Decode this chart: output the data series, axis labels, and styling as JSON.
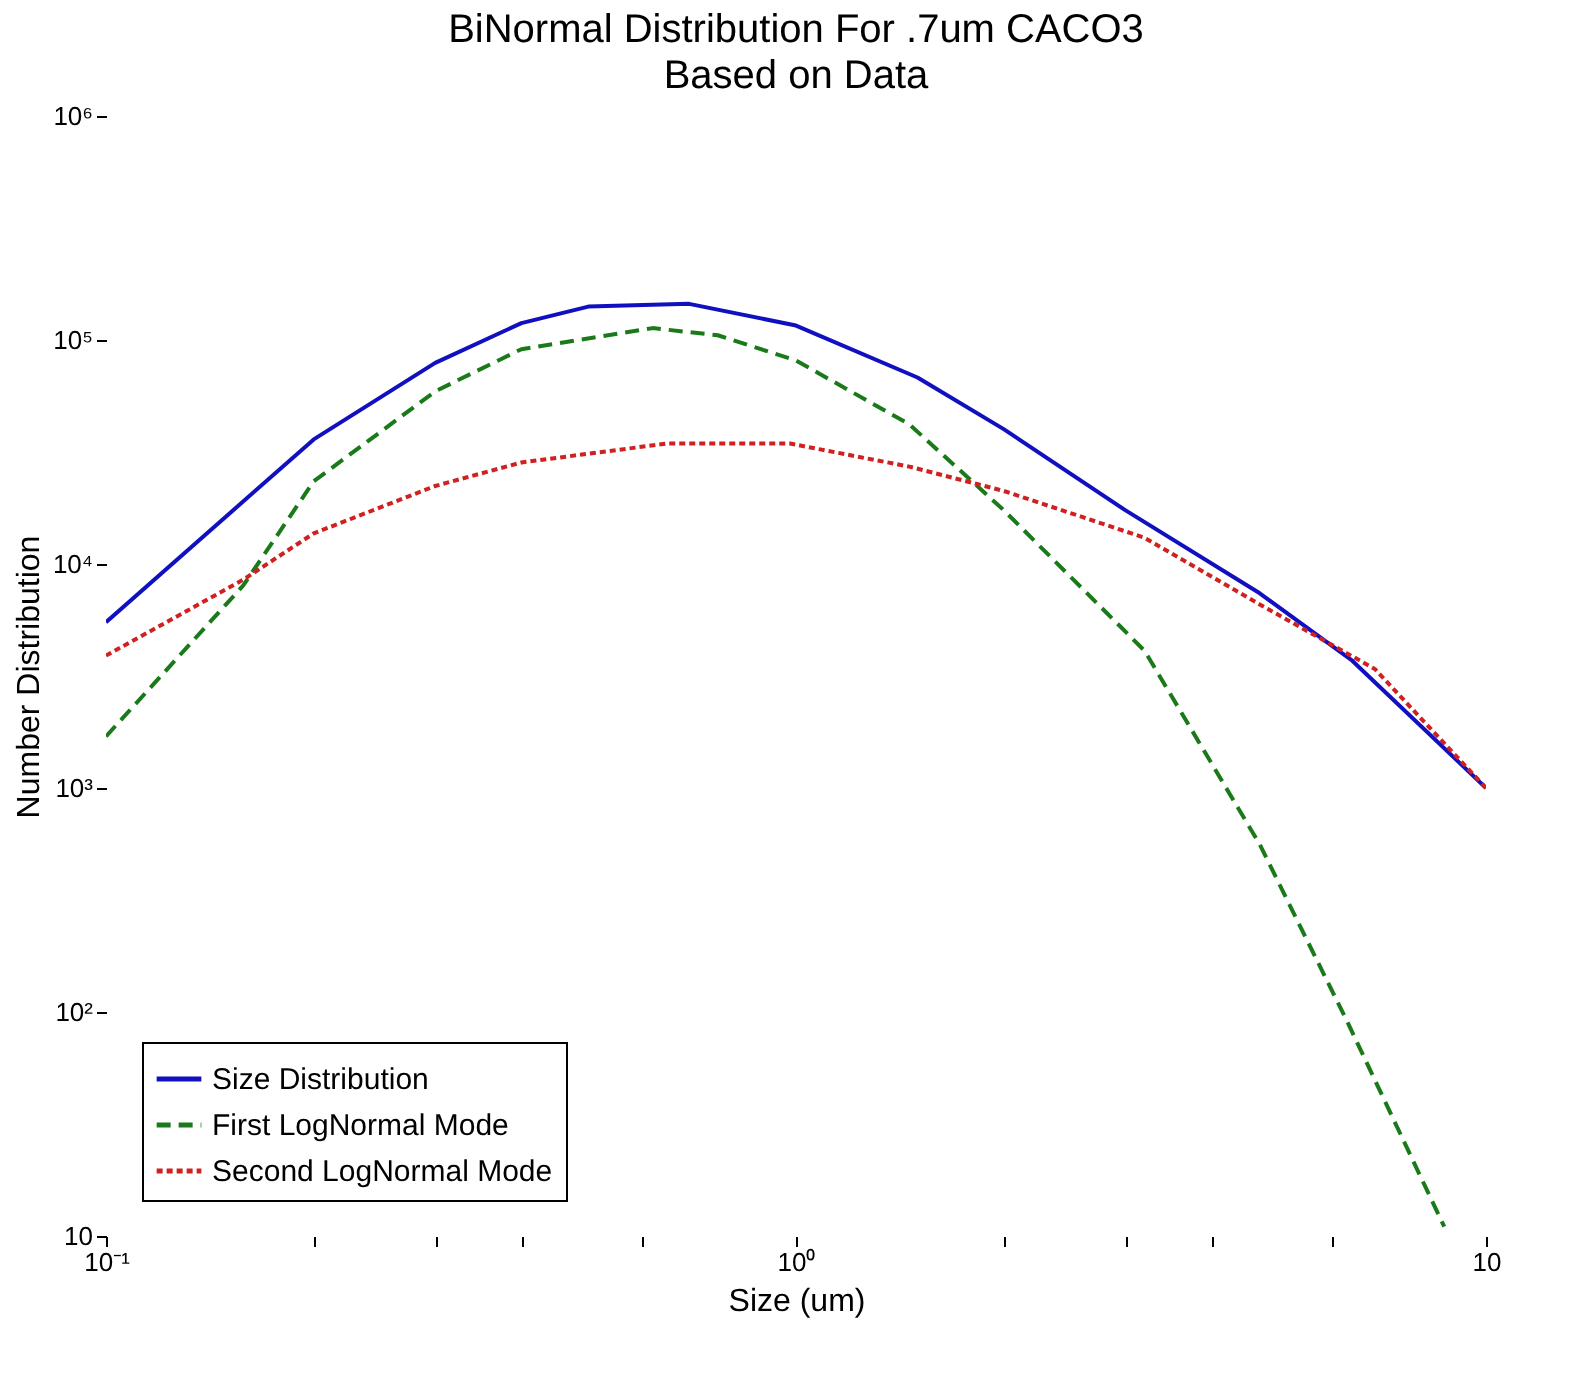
{
  "chart_data": {
    "type": "line",
    "title": "BiNormal Distribution For .7um CACO3",
    "subtitle": "Based on Data",
    "xlabel": "Size (um)",
    "ylabel": "Number Distribution",
    "log": "xy",
    "grid": false,
    "legend": "bottom left",
    "marker": "none",
    "xlim": [
      0.1,
      10
    ],
    "ylim": [
      10,
      1000000
    ],
    "xticks": [
      {
        "value": 0.1,
        "label": "10⁻¹"
      },
      {
        "value": 0.2,
        "label": null
      },
      {
        "value": 0.3,
        "label": null
      },
      {
        "value": 0.4,
        "label": null
      },
      {
        "value": 0.6,
        "label": null
      },
      {
        "value": 1,
        "label": "10⁰"
      },
      {
        "value": 2,
        "label": null
      },
      {
        "value": 3,
        "label": null
      },
      {
        "value": 4,
        "label": null
      },
      {
        "value": 6,
        "label": null
      },
      10
    ],
    "yticks": [
      10,
      {
        "value": 100,
        "label": "10²"
      },
      {
        "value": 1000,
        "label": "10³"
      },
      {
        "value": 10000,
        "label": "10⁴"
      },
      {
        "value": 100000,
        "label": "10⁵"
      },
      {
        "value": 1000000,
        "label": "10⁶"
      }
    ],
    "series": [
      {
        "name": "Size Distribution",
        "color": "#1010c0",
        "line_style": "solid",
        "x": [
          0.1,
          0.2,
          0.3,
          0.4,
          0.5,
          0.7,
          1,
          1.5,
          2,
          3,
          4.7,
          6.4,
          10
        ],
        "values": [
          5500,
          36000,
          79000,
          119000,
          141000,
          145000,
          116000,
          68000,
          40000,
          17400,
          7400,
          3700,
          1000
        ]
      },
      {
        "name": "First LogNormal Mode",
        "color": "#1a7a1a",
        "line_style": "dashed",
        "x": [
          0.1,
          0.158,
          0.2,
          0.3,
          0.4,
          0.62,
          0.77,
          1,
          1.46,
          2,
          3.2,
          4.7,
          6.3,
          8.7
        ],
        "values": [
          1700,
          8000,
          23400,
          59000,
          91000,
          113000,
          105000,
          81000,
          42000,
          17400,
          4100,
          560,
          90,
          11
        ]
      },
      {
        "name": "Second LogNormal Mode",
        "color": "#d02020",
        "line_style": "dotted",
        "x": [
          0.1,
          0.158,
          0.2,
          0.3,
          0.4,
          0.65,
          0.98,
          1.46,
          2,
          3.2,
          4.7,
          6.9,
          10
        ],
        "values": [
          3900,
          8500,
          13700,
          22300,
          28400,
          34500,
          34500,
          27200,
          21200,
          13100,
          6600,
          3400,
          1000
        ]
      }
    ]
  }
}
